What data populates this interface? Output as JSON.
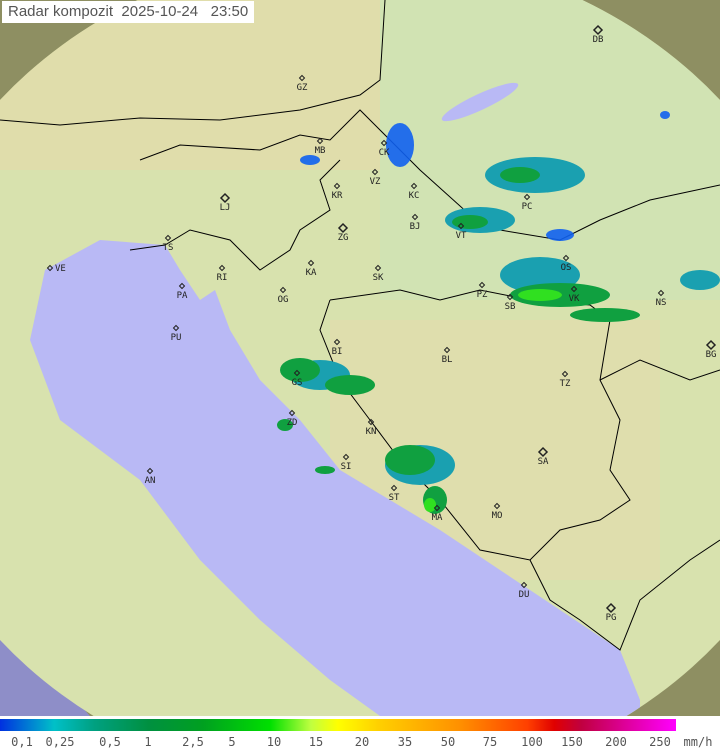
{
  "title": {
    "label": "Radar kompozit",
    "date": "2025-10-24",
    "time": "23:50"
  },
  "colors": {
    "sea": "#b9b9f5",
    "land": "#d9e4b0",
    "outside": "#8f9060",
    "border": "#000000"
  },
  "cities": [
    "DB",
    "GZ",
    "MB",
    "CK",
    "VZ",
    "KR",
    "KC",
    "LJ",
    "ZG",
    "BJ",
    "VT",
    "PC",
    "TS",
    "VE",
    "KA",
    "SK",
    "OS",
    "RI",
    "PA",
    "OG",
    "PZ",
    "SB",
    "VK",
    "NS",
    "PU",
    "BI",
    "BL",
    "BG",
    "GS",
    "TZ",
    "ZD",
    "KN",
    "SA",
    "AN",
    "SI",
    "ST",
    "MO",
    "MA",
    "DU",
    "PG"
  ],
  "legend": {
    "labels": [
      "0,1",
      "0,25",
      "0,5",
      "1",
      "2,5",
      "5",
      "10",
      "15",
      "20",
      "35",
      "50",
      "75",
      "100",
      "150",
      "200",
      "250"
    ],
    "unit": "mm/h"
  }
}
